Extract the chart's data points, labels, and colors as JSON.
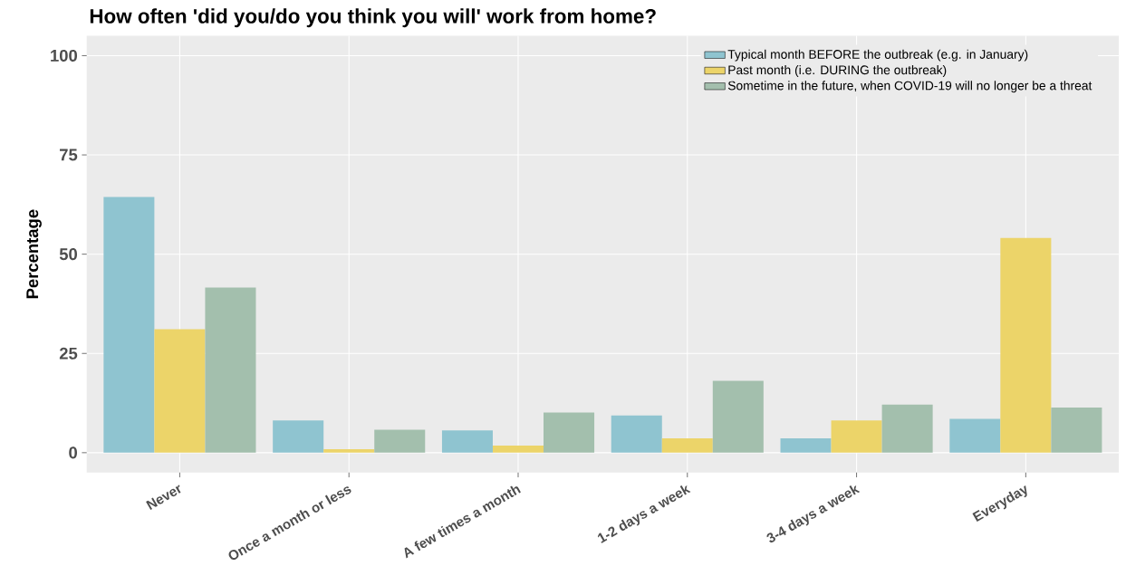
{
  "chart_data": {
    "type": "bar",
    "title": "How often 'did you/do you think you will' work from home?",
    "ylabel": "Percentage",
    "categories": [
      "Never",
      "Once a month or less",
      "A few times a month",
      "1-2 days a week",
      "3-4 days a week",
      "Everyday"
    ],
    "series": [
      {
        "name": "Typical month BEFORE the outbreak (e.g. in January)",
        "color": "#8fc4d0",
        "values": [
          64.4,
          8.1,
          5.6,
          9.4,
          3.6,
          8.5
        ]
      },
      {
        "name": "Past month (i.e. DURING the outbreak)",
        "color": "#ecd469",
        "values": [
          31.1,
          0.9,
          1.8,
          3.6,
          8.1,
          54.1
        ]
      },
      {
        "name": "Sometime in the future, when COVID-19 will no longer be a threat",
        "color": "#a3bfad",
        "values": [
          41.6,
          5.8,
          10.1,
          18.1,
          12.1,
          11.4
        ]
      }
    ],
    "ylim": [
      -5,
      105
    ],
    "yticks": [
      0,
      25,
      50,
      75,
      100
    ],
    "grid": true,
    "legend": "top right"
  }
}
